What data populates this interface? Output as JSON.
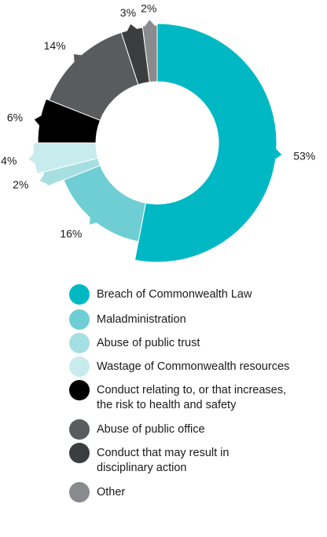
{
  "chart_data": {
    "type": "pie",
    "donut": true,
    "categories": [
      "Breach of Commonwealth Law",
      "Maladministration",
      "Abuse of public trust",
      "Wastage of Commonwealth resources",
      "Conduct relating to, or that increases, the risk to health and safety",
      "Abuse of public office",
      "Conduct that may result in disciplinary action",
      "Other"
    ],
    "values": [
      53,
      16,
      2,
      4,
      6,
      14,
      3,
      2
    ],
    "data_labels": [
      "53%",
      "16%",
      "2%",
      "4%",
      "6%",
      "14%",
      "3%",
      "2%"
    ],
    "colors": [
      "#00b8c4",
      "#6fced3",
      "#a6dfe2",
      "#c8ebed",
      "#000000",
      "#5a5b5d",
      "#3c3d3f",
      "#8a8b8e"
    ],
    "legend_position": "bottom",
    "legend": [
      {
        "label": "Breach of Commonwealth Law",
        "line2": "",
        "color": "#00b8c4"
      },
      {
        "label": "Maladministration",
        "line2": "",
        "color": "#6fced3"
      },
      {
        "label": "Abuse of public trust",
        "line2": "",
        "color": "#a6dfe2"
      },
      {
        "label": "Wastage of Commonwealth resources",
        "line2": "",
        "color": "#c8ebed"
      },
      {
        "label": "Conduct relating to, or that increases,",
        "line2": "the risk to health and safety",
        "color": "#000000"
      },
      {
        "label": "Abuse of public office",
        "line2": "",
        "color": "#5a5b5d"
      },
      {
        "label": "Conduct that may result in",
        "line2": "disciplinary action",
        "color": "#3c3d3f"
      },
      {
        "label": "Other",
        "line2": "",
        "color": "#8a8b8e"
      }
    ]
  }
}
